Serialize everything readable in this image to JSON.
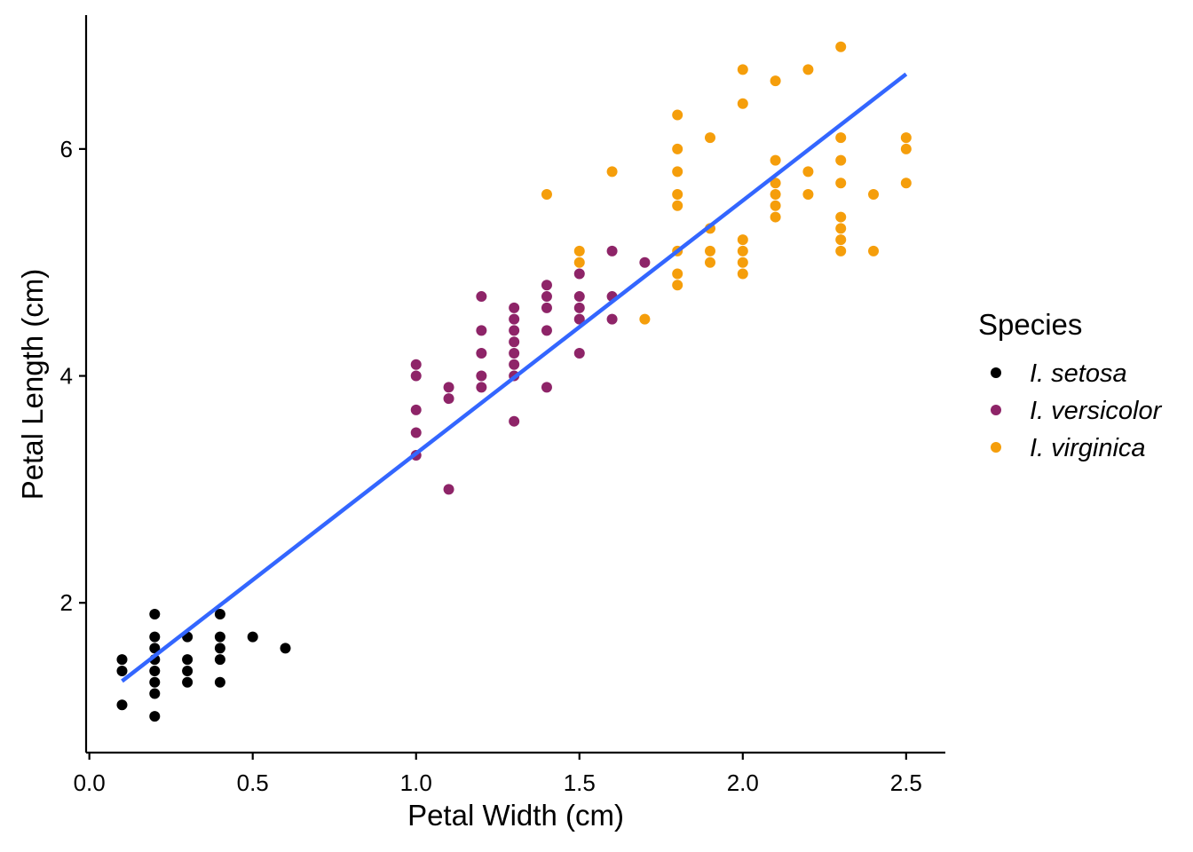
{
  "chart_data": {
    "type": "scatter",
    "xlabel": "Petal Width (cm)",
    "ylabel": "Petal Length (cm)",
    "xlim": [
      -0.01,
      2.62
    ],
    "ylim": [
      0.68,
      7.18
    ],
    "xticks": [
      0.0,
      0.5,
      1.0,
      1.5,
      2.0,
      2.5
    ],
    "xtick_labels": [
      "0.0",
      "0.5",
      "1.0",
      "1.5",
      "2.0",
      "2.5"
    ],
    "yticks": [
      2,
      4,
      6
    ],
    "ytick_labels": [
      "2",
      "4",
      "6"
    ],
    "grid": false,
    "legend": {
      "title": "Species",
      "placement": "right"
    },
    "series": [
      {
        "name": "I. setosa",
        "color": "#000000",
        "points": [
          [
            0.1,
            1.5
          ],
          [
            0.1,
            1.4
          ],
          [
            0.1,
            1.1
          ],
          [
            0.2,
            1.9
          ],
          [
            0.2,
            1.7
          ],
          [
            0.2,
            1.6
          ],
          [
            0.2,
            1.5
          ],
          [
            0.2,
            1.4
          ],
          [
            0.2,
            1.3
          ],
          [
            0.2,
            1.2
          ],
          [
            0.2,
            1.0
          ],
          [
            0.3,
            1.7
          ],
          [
            0.3,
            1.5
          ],
          [
            0.3,
            1.4
          ],
          [
            0.3,
            1.3
          ],
          [
            0.4,
            1.9
          ],
          [
            0.4,
            1.7
          ],
          [
            0.4,
            1.6
          ],
          [
            0.4,
            1.5
          ],
          [
            0.4,
            1.3
          ],
          [
            0.5,
            1.7
          ],
          [
            0.6,
            1.6
          ]
        ]
      },
      {
        "name": "I. versicolor",
        "color": "#8E2468",
        "points": [
          [
            1.0,
            4.1
          ],
          [
            1.0,
            4.0
          ],
          [
            1.0,
            3.7
          ],
          [
            1.0,
            3.5
          ],
          [
            1.0,
            3.3
          ],
          [
            1.1,
            3.9
          ],
          [
            1.1,
            3.8
          ],
          [
            1.1,
            3.0
          ],
          [
            1.2,
            4.7
          ],
          [
            1.2,
            4.4
          ],
          [
            1.2,
            4.2
          ],
          [
            1.2,
            4.0
          ],
          [
            1.2,
            3.9
          ],
          [
            1.3,
            4.6
          ],
          [
            1.3,
            4.5
          ],
          [
            1.3,
            4.4
          ],
          [
            1.3,
            4.3
          ],
          [
            1.3,
            4.2
          ],
          [
            1.3,
            4.1
          ],
          [
            1.3,
            4.0
          ],
          [
            1.3,
            3.6
          ],
          [
            1.4,
            4.8
          ],
          [
            1.4,
            4.7
          ],
          [
            1.4,
            4.6
          ],
          [
            1.4,
            4.4
          ],
          [
            1.4,
            3.9
          ],
          [
            1.5,
            4.9
          ],
          [
            1.5,
            4.7
          ],
          [
            1.5,
            4.6
          ],
          [
            1.5,
            4.5
          ],
          [
            1.5,
            4.2
          ],
          [
            1.6,
            5.1
          ],
          [
            1.6,
            4.7
          ],
          [
            1.6,
            4.5
          ],
          [
            1.7,
            5.0
          ]
        ]
      },
      {
        "name": "I. virginica",
        "color": "#F59E0B",
        "points": [
          [
            1.4,
            5.6
          ],
          [
            1.5,
            5.1
          ],
          [
            1.5,
            5.0
          ],
          [
            1.6,
            5.8
          ],
          [
            1.7,
            4.5
          ],
          [
            1.8,
            6.3
          ],
          [
            1.8,
            6.0
          ],
          [
            1.8,
            5.8
          ],
          [
            1.8,
            5.6
          ],
          [
            1.8,
            5.5
          ],
          [
            1.8,
            5.1
          ],
          [
            1.8,
            4.9
          ],
          [
            1.8,
            4.8
          ],
          [
            1.9,
            6.1
          ],
          [
            1.9,
            5.3
          ],
          [
            1.9,
            5.1
          ],
          [
            1.9,
            5.0
          ],
          [
            2.0,
            6.7
          ],
          [
            2.0,
            6.4
          ],
          [
            2.0,
            5.2
          ],
          [
            2.0,
            5.1
          ],
          [
            2.0,
            5.0
          ],
          [
            2.0,
            4.9
          ],
          [
            2.1,
            6.6
          ],
          [
            2.1,
            5.9
          ],
          [
            2.1,
            5.7
          ],
          [
            2.1,
            5.6
          ],
          [
            2.1,
            5.5
          ],
          [
            2.1,
            5.4
          ],
          [
            2.2,
            6.7
          ],
          [
            2.2,
            5.8
          ],
          [
            2.2,
            5.6
          ],
          [
            2.3,
            6.9
          ],
          [
            2.3,
            6.1
          ],
          [
            2.3,
            5.9
          ],
          [
            2.3,
            5.7
          ],
          [
            2.3,
            5.4
          ],
          [
            2.3,
            5.3
          ],
          [
            2.3,
            5.2
          ],
          [
            2.3,
            5.1
          ],
          [
            2.4,
            5.6
          ],
          [
            2.4,
            5.1
          ],
          [
            2.5,
            6.1
          ],
          [
            2.5,
            6.0
          ],
          [
            2.5,
            5.7
          ]
        ]
      }
    ],
    "trendline": {
      "type": "linear",
      "color": "#3366FF",
      "x": [
        0.1,
        2.5
      ],
      "y": [
        1.31,
        6.66
      ]
    }
  }
}
